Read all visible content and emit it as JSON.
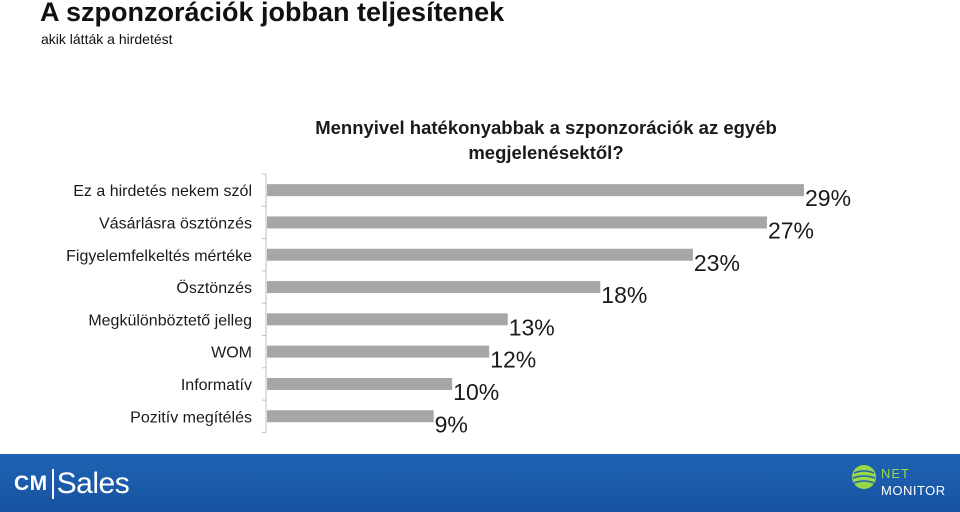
{
  "header": {
    "title": "A szponzorációk jobban teljesítenek",
    "subtitle": "akik látták a hirdetést"
  },
  "chart_data": {
    "type": "bar",
    "orientation": "horizontal",
    "title": "Mennyivel hatékonyabbak a szponzorációk az egyéb megjelenésektől?",
    "categories": [
      "Ez a hirdetés nekem szól",
      "Vásárlásra ösztönzés",
      "Figyelemfelkeltés mértéke",
      "Ösztönzés",
      "Megkülönböztető jelleg",
      "WOM",
      "Informatív",
      "Pozitív megítélés"
    ],
    "values": [
      29,
      27,
      23,
      18,
      13,
      12,
      10,
      9
    ],
    "value_labels": [
      "29%",
      "27%",
      "23%",
      "18%",
      "13%",
      "12%",
      "10%",
      "9%"
    ],
    "unit": "%",
    "xlim": [
      0,
      32
    ],
    "grid": false,
    "bar_color": "#a6a6a6"
  },
  "footer": {
    "brand_left_bold": "CM",
    "brand_left_light": "Sales",
    "brand_right_top": "NET",
    "brand_right_bottom": "MONITOR",
    "colors": {
      "bar": "#1f63b4",
      "accent": "#9ad84a"
    }
  }
}
